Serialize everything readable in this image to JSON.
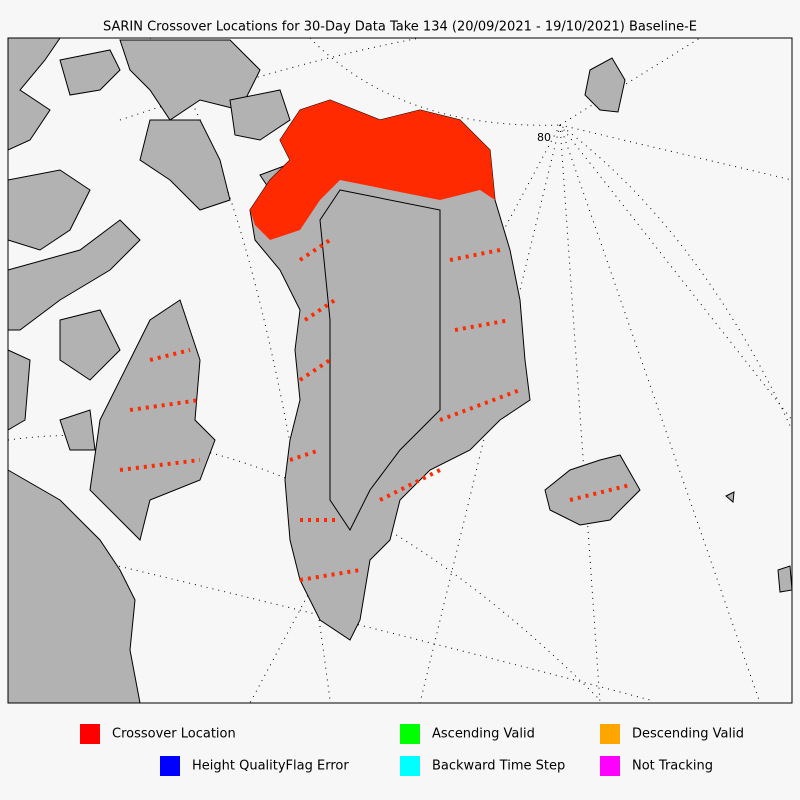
{
  "title": "SARIN Crossover Locations for 30-Day Data Take 134 (20/09/2021 - 19/10/2021) Baseline-E",
  "graticule_labels": [
    "80"
  ],
  "legend": [
    {
      "label": "Crossover Location",
      "color": "#ff0000"
    },
    {
      "label": "Ascending Valid",
      "color": "#00ff00"
    },
    {
      "label": "Descending Valid",
      "color": "#ffa500"
    },
    {
      "label": "Height QualityFlag Error",
      "color": "#0000ff"
    },
    {
      "label": "Backward Time Step",
      "color": "#00ffff"
    },
    {
      "label": "Not Tracking",
      "color": "#ff00ff"
    }
  ]
}
